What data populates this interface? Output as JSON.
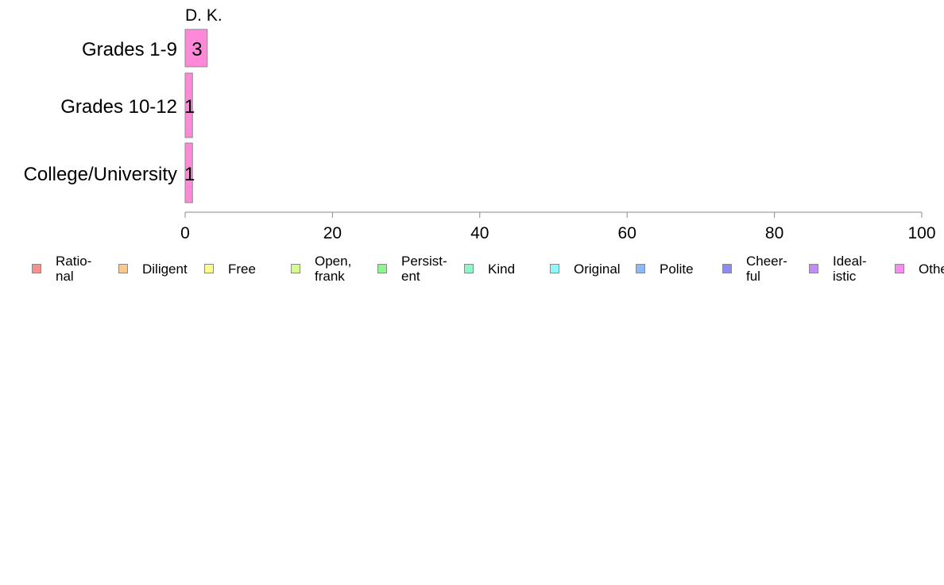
{
  "chart_data": {
    "type": "bar",
    "orientation": "horizontal",
    "title": "D. K.",
    "categories": [
      "Grades 1-9",
      "Grades 10-12",
      "College/University"
    ],
    "series": [
      {
        "name": "Other",
        "color": "#ff88d8",
        "values": [
          3,
          1,
          1
        ],
        "labels": [
          "3",
          "1",
          "1"
        ]
      }
    ],
    "xlim": [
      0,
      100
    ],
    "xticks": [
      0,
      20,
      40,
      60,
      80,
      100
    ],
    "xlabel": "",
    "ylabel": "",
    "grid": false,
    "legend_position": "bottom",
    "legend": [
      {
        "label": "Ratio-\nnal",
        "color": "#f8908c"
      },
      {
        "label": "Diligent",
        "color": "#fbc98c"
      },
      {
        "label": "Free",
        "color": "#fdfb8c"
      },
      {
        "label": "Open,\nfrank",
        "color": "#d6fa8c"
      },
      {
        "label": "Persist-\nent",
        "color": "#8ef68e"
      },
      {
        "label": "Kind",
        "color": "#8ef7c8"
      },
      {
        "label": "Original",
        "color": "#8ef9f9"
      },
      {
        "label": "Polite",
        "color": "#8cbaf8"
      },
      {
        "label": "Cheer-\nful",
        "color": "#8c8cf3"
      },
      {
        "label": "Ideal-\nistic",
        "color": "#c08cf8"
      },
      {
        "label": "Other",
        "color": "#f98cf0"
      }
    ]
  }
}
